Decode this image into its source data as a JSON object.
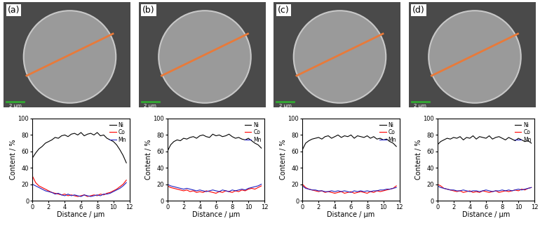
{
  "images": [
    {
      "label": "(a)",
      "scale_bar": "2 μm"
    },
    {
      "label": "(b)",
      "scale_bar": "2 μm"
    },
    {
      "label": "(c)",
      "scale_bar": "2 μm"
    },
    {
      "label": "(d)",
      "scale_bar": "2 μm"
    }
  ],
  "chart_data": [
    {
      "type": "line",
      "x_label": "Distance / μm",
      "y_label": "Content / %",
      "xlim": [
        0,
        12
      ],
      "ylim": [
        0,
        100
      ],
      "xticks": [
        0,
        2,
        4,
        6,
        8,
        10,
        12
      ],
      "yticks": [
        0,
        20,
        40,
        60,
        80,
        100
      ],
      "legend": "upper right",
      "x": [
        0,
        0.4,
        0.8,
        1.2,
        1.6,
        2.0,
        2.4,
        2.8,
        3.2,
        3.6,
        4.0,
        4.4,
        4.8,
        5.2,
        5.6,
        6.0,
        6.4,
        6.8,
        7.2,
        7.6,
        8.0,
        8.4,
        8.8,
        9.2,
        9.6,
        10.0,
        10.4,
        10.8,
        11.2,
        11.6
      ],
      "series": [
        {
          "name": "Ni",
          "color": "#000000",
          "values": [
            52,
            58,
            63,
            66,
            70,
            72,
            74,
            77,
            76,
            79,
            80,
            78,
            81,
            82,
            80,
            83,
            79,
            81,
            82,
            80,
            83,
            79,
            80,
            76,
            74,
            72,
            68,
            62,
            55,
            46
          ]
        },
        {
          "name": "Co",
          "color": "#ff0000",
          "values": [
            30,
            22,
            18,
            16,
            14,
            12,
            10,
            9,
            8,
            7,
            8,
            6,
            7,
            6,
            5,
            6,
            7,
            5,
            6,
            7,
            6,
            8,
            7,
            9,
            10,
            12,
            14,
            17,
            20,
            25
          ]
        },
        {
          "name": "Mn",
          "color": "#2020c0",
          "values": [
            20,
            18,
            16,
            14,
            12,
            11,
            10,
            8,
            9,
            7,
            6,
            8,
            6,
            7,
            6,
            5,
            7,
            6,
            5,
            6,
            7,
            6,
            8,
            8,
            9,
            11,
            13,
            15,
            18,
            22
          ]
        }
      ]
    },
    {
      "type": "line",
      "x_label": "Distance / μm",
      "y_label": "Content / %",
      "xlim": [
        0,
        12
      ],
      "ylim": [
        0,
        100
      ],
      "xticks": [
        0,
        2,
        4,
        6,
        8,
        10,
        12
      ],
      "yticks": [
        0,
        20,
        40,
        60,
        80,
        100
      ],
      "legend": "upper right",
      "x": [
        0,
        0.4,
        0.8,
        1.2,
        1.6,
        2.0,
        2.4,
        2.8,
        3.2,
        3.6,
        4.0,
        4.4,
        4.8,
        5.2,
        5.6,
        6.0,
        6.4,
        6.8,
        7.2,
        7.6,
        8.0,
        8.4,
        8.8,
        9.2,
        9.6,
        10.0,
        10.4,
        10.8,
        11.2,
        11.6
      ],
      "series": [
        {
          "name": "Ni",
          "color": "#000000",
          "values": [
            60,
            68,
            72,
            74,
            73,
            76,
            75,
            77,
            78,
            76,
            79,
            80,
            78,
            77,
            81,
            79,
            80,
            78,
            79,
            81,
            78,
            76,
            77,
            75,
            74,
            76,
            73,
            70,
            68,
            64
          ]
        },
        {
          "name": "Co",
          "color": "#ff0000",
          "values": [
            18,
            16,
            15,
            14,
            13,
            12,
            13,
            11,
            12,
            10,
            11,
            10,
            12,
            11,
            10,
            9,
            11,
            10,
            12,
            11,
            10,
            12,
            11,
            13,
            12,
            14,
            15,
            14,
            16,
            18
          ]
        },
        {
          "name": "Mn",
          "color": "#2020c0",
          "values": [
            20,
            18,
            17,
            16,
            15,
            14,
            15,
            14,
            13,
            12,
            13,
            12,
            11,
            12,
            13,
            12,
            11,
            13,
            12,
            11,
            13,
            12,
            13,
            14,
            13,
            15,
            16,
            17,
            18,
            20
          ]
        }
      ]
    },
    {
      "type": "line",
      "x_label": "Distance / μm",
      "y_label": "Content / %",
      "xlim": [
        0,
        12
      ],
      "ylim": [
        0,
        100
      ],
      "xticks": [
        0,
        2,
        4,
        6,
        8,
        10,
        12
      ],
      "yticks": [
        0,
        20,
        40,
        60,
        80,
        100
      ],
      "legend": "upper right",
      "x": [
        0,
        0.4,
        0.8,
        1.2,
        1.6,
        2.0,
        2.4,
        2.8,
        3.2,
        3.6,
        4.0,
        4.4,
        4.8,
        5.2,
        5.6,
        6.0,
        6.4,
        6.8,
        7.2,
        7.6,
        8.0,
        8.4,
        8.8,
        9.2,
        9.6,
        10.0,
        10.4,
        10.8,
        11.2,
        11.6
      ],
      "series": [
        {
          "name": "Ni",
          "color": "#000000",
          "values": [
            62,
            70,
            73,
            75,
            76,
            77,
            75,
            78,
            79,
            76,
            78,
            80,
            77,
            79,
            78,
            80,
            76,
            79,
            78,
            77,
            79,
            76,
            78,
            75,
            76,
            74,
            75,
            72,
            70,
            66
          ]
        },
        {
          "name": "Co",
          "color": "#ff0000",
          "values": [
            20,
            16,
            14,
            13,
            12,
            11,
            12,
            10,
            11,
            10,
            9,
            10,
            11,
            9,
            10,
            11,
            9,
            10,
            11,
            10,
            9,
            11,
            10,
            12,
            11,
            12,
            13,
            14,
            15,
            18
          ]
        },
        {
          "name": "Mn",
          "color": "#2020c0",
          "values": [
            18,
            15,
            14,
            13,
            13,
            12,
            12,
            11,
            11,
            12,
            11,
            12,
            11,
            12,
            11,
            10,
            12,
            11,
            12,
            11,
            12,
            11,
            12,
            12,
            13,
            13,
            14,
            14,
            15,
            16
          ]
        }
      ]
    },
    {
      "type": "line",
      "x_label": "Distance / μm",
      "y_label": "Content / %",
      "xlim": [
        0,
        12
      ],
      "ylim": [
        0,
        100
      ],
      "xticks": [
        0,
        2,
        4,
        6,
        8,
        10,
        12
      ],
      "yticks": [
        0,
        20,
        40,
        60,
        80,
        100
      ],
      "legend": "upper right",
      "x": [
        0,
        0.4,
        0.8,
        1.2,
        1.6,
        2.0,
        2.4,
        2.8,
        3.2,
        3.6,
        4.0,
        4.4,
        4.8,
        5.2,
        5.6,
        6.0,
        6.4,
        6.8,
        7.2,
        7.6,
        8.0,
        8.4,
        8.8,
        9.2,
        9.6,
        10.0,
        10.4,
        10.8,
        11.2,
        11.6
      ],
      "series": [
        {
          "name": "Ni",
          "color": "#000000",
          "values": [
            68,
            72,
            74,
            76,
            75,
            77,
            76,
            78,
            74,
            77,
            76,
            79,
            75,
            78,
            77,
            76,
            79,
            75,
            77,
            78,
            76,
            74,
            77,
            75,
            73,
            76,
            74,
            72,
            73,
            70
          ]
        },
        {
          "name": "Co",
          "color": "#ff0000",
          "values": [
            20,
            18,
            15,
            14,
            13,
            12,
            11,
            12,
            10,
            11,
            12,
            10,
            11,
            10,
            12,
            11,
            10,
            11,
            12,
            10,
            11,
            12,
            11,
            12,
            13,
            12,
            14,
            13,
            15,
            16
          ]
        },
        {
          "name": "Mn",
          "color": "#2020c0",
          "values": [
            18,
            16,
            15,
            14,
            13,
            13,
            12,
            12,
            13,
            12,
            11,
            12,
            12,
            11,
            12,
            13,
            12,
            11,
            12,
            12,
            13,
            12,
            13,
            12,
            13,
            14,
            13,
            14,
            15,
            16
          ]
        }
      ]
    }
  ]
}
